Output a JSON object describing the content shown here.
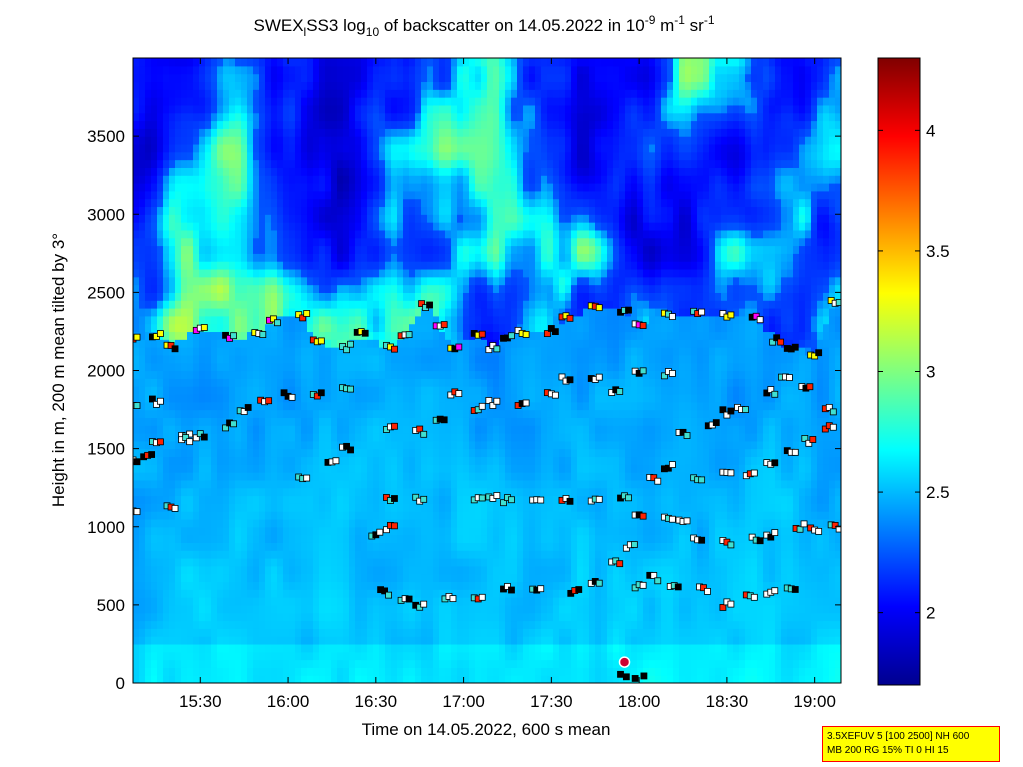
{
  "chart_data": {
    "type": "heatmap",
    "title": {
      "prefix": "SWEX",
      "prefix_sub": "l",
      "middle": "SS3 log",
      "log_sub": "10",
      "after_log": " of backscatter on 14.05.2022 in 10",
      "exp_sup": "-9",
      "unit_m": " m",
      "unit_m_sup": "-1",
      "unit_sr": " sr",
      "unit_sr_sup": "-1"
    },
    "xlabel": "Time on 14.05.2022, 600 s mean",
    "ylabel": "Height in m, 200 m mean tilted by 3°",
    "x_ticks": [
      "15:30",
      "16:00",
      "16:30",
      "17:00",
      "17:30",
      "18:00",
      "18:30",
      "19:00"
    ],
    "y_ticks": [
      "0",
      "500",
      "1000",
      "1500",
      "2000",
      "2500",
      "3000",
      "3500"
    ],
    "xlim": [
      "15:07",
      "19:09"
    ],
    "ylim": [
      0,
      4000
    ],
    "colorbar": {
      "ticks": [
        "2",
        "2.5",
        "3",
        "3.5",
        "4"
      ],
      "range": [
        1.7,
        4.3
      ]
    },
    "layers": [
      {
        "name": "boundary",
        "points": [
          [
            "15:07",
            2220
          ],
          [
            "15:15",
            2230
          ],
          [
            "15:20",
            2150
          ],
          [
            "15:30",
            2270
          ],
          [
            "15:40",
            2220
          ],
          [
            "15:50",
            2230
          ],
          [
            "15:55",
            2320
          ],
          [
            "16:05",
            2350
          ],
          [
            "16:10",
            2180
          ],
          [
            "16:20",
            2150
          ],
          [
            "16:25",
            2230
          ],
          [
            "16:35",
            2150
          ],
          [
            "16:40",
            2230
          ],
          [
            "16:47",
            2420
          ],
          [
            "16:52",
            2290
          ],
          [
            "16:57",
            2150
          ],
          [
            "17:05",
            2240
          ],
          [
            "17:10",
            2150
          ],
          [
            "17:15",
            2220
          ],
          [
            "17:20",
            2250
          ],
          [
            "17:30",
            2250
          ],
          [
            "17:35",
            2350
          ],
          [
            "17:45",
            2400
          ],
          [
            "17:55",
            2380
          ],
          [
            "18:00",
            2300
          ],
          [
            "18:10",
            2360
          ],
          [
            "18:20",
            2360
          ],
          [
            "18:30",
            2350
          ],
          [
            "18:40",
            2340
          ],
          [
            "18:47",
            2200
          ],
          [
            "18:52",
            2150
          ],
          [
            "19:00",
            2100
          ],
          [
            "19:07",
            2430
          ]
        ]
      },
      {
        "name": "upper",
        "points": [
          [
            "15:07",
            1780
          ],
          [
            "15:15",
            1800
          ],
          [
            "15:25",
            1600
          ],
          [
            "15:30",
            1580
          ],
          [
            "15:40",
            1650
          ],
          [
            "15:45",
            1750
          ],
          [
            "15:52",
            1800
          ],
          [
            "16:00",
            1840
          ],
          [
            "16:10",
            1840
          ],
          [
            "16:20",
            1880
          ],
          [
            "16:35",
            1630
          ],
          [
            "16:45",
            1610
          ],
          [
            "16:52",
            1700
          ],
          [
            "16:57",
            1850
          ],
          [
            "17:05",
            1760
          ],
          [
            "17:10",
            1790
          ],
          [
            "17:20",
            1780
          ],
          [
            "17:30",
            1850
          ],
          [
            "17:35",
            1940
          ],
          [
            "17:45",
            1940
          ],
          [
            "17:52",
            1860
          ],
          [
            "18:00",
            1980
          ],
          [
            "18:10",
            1980
          ],
          [
            "18:15",
            1600
          ],
          [
            "18:25",
            1650
          ],
          [
            "18:30",
            1730
          ],
          [
            "18:35",
            1760
          ],
          [
            "18:45",
            1860
          ],
          [
            "18:50",
            1940
          ],
          [
            "18:57",
            1900
          ],
          [
            "19:05",
            1750
          ]
        ]
      },
      {
        "name": "middle",
        "points": [
          [
            "15:07",
            1420
          ],
          [
            "15:12",
            1450
          ],
          [
            "15:15",
            1550
          ],
          [
            "15:25",
            1560
          ],
          [
            "16:05",
            1300
          ],
          [
            "16:15",
            1420
          ],
          [
            "16:20",
            1500
          ],
          [
            "16:35",
            1180
          ],
          [
            "16:45",
            1170
          ],
          [
            "17:05",
            1180
          ],
          [
            "17:10",
            1200
          ],
          [
            "17:15",
            1170
          ],
          [
            "17:35",
            1170
          ],
          [
            "17:45",
            1170
          ],
          [
            "17:55",
            1200
          ],
          [
            "18:05",
            1300
          ],
          [
            "18:10",
            1380
          ],
          [
            "18:20",
            1310
          ],
          [
            "18:30",
            1330
          ],
          [
            "18:38",
            1340
          ],
          [
            "18:45",
            1400
          ],
          [
            "18:52",
            1480
          ],
          [
            "18:58",
            1550
          ],
          [
            "19:05",
            1640
          ]
        ]
      },
      {
        "name": "lower",
        "points": [
          [
            "15:07",
            1100
          ],
          [
            "15:20",
            1120
          ],
          [
            "16:30",
            950
          ],
          [
            "16:35",
            990
          ],
          [
            "17:25",
            1180
          ],
          [
            "18:00",
            1060
          ],
          [
            "18:10",
            1050
          ],
          [
            "18:15",
            1040
          ],
          [
            "18:20",
            920
          ],
          [
            "18:30",
            900
          ],
          [
            "18:40",
            920
          ],
          [
            "18:45",
            950
          ],
          [
            "18:55",
            1000
          ],
          [
            "19:00",
            980
          ],
          [
            "19:07",
            1000
          ]
        ]
      },
      {
        "name": "low",
        "points": [
          [
            "16:33",
            580
          ],
          [
            "16:40",
            540
          ],
          [
            "16:45",
            500
          ],
          [
            "16:55",
            550
          ],
          [
            "17:05",
            550
          ],
          [
            "17:15",
            600
          ],
          [
            "17:25",
            600
          ],
          [
            "17:38",
            580
          ],
          [
            "17:45",
            640
          ],
          [
            "17:52",
            780
          ],
          [
            "17:57",
            880
          ],
          [
            "18:00",
            620
          ],
          [
            "18:05",
            670
          ],
          [
            "18:12",
            620
          ],
          [
            "18:22",
            600
          ],
          [
            "18:30",
            500
          ],
          [
            "18:38",
            550
          ],
          [
            "18:45",
            580
          ],
          [
            "18:52",
            600
          ]
        ]
      },
      {
        "name": "ground",
        "points": [
          [
            "17:55",
            70
          ],
          [
            "17:57",
            40
          ],
          [
            "18:00",
            40
          ],
          [
            "18:03",
            40
          ]
        ]
      }
    ]
  },
  "info_box": {
    "line1": "3.5XEFUV 5 [100 2500] NH 600",
    "line2": "MB 200 RG 15% TI 0 HI 15"
  }
}
